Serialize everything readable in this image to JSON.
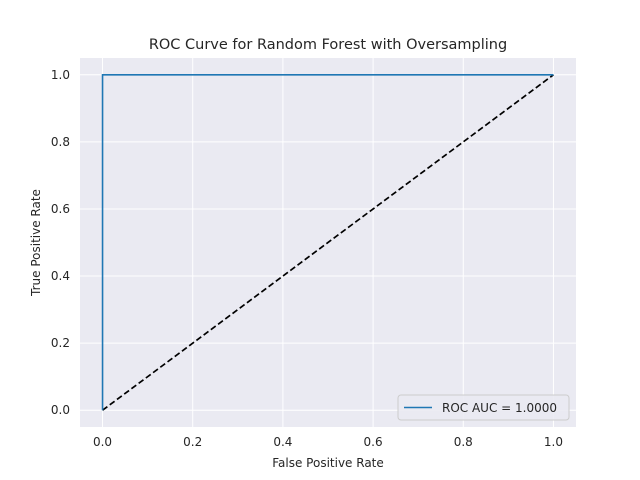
{
  "chart_data": {
    "type": "line",
    "title": "ROC Curve for Random Forest with Oversampling",
    "xlabel": "False Positive Rate",
    "ylabel": "True Positive Rate",
    "xlim": [
      -0.05,
      1.05
    ],
    "ylim": [
      -0.05,
      1.05
    ],
    "x_ticks": [
      0.0,
      0.2,
      0.4,
      0.6,
      0.8,
      1.0
    ],
    "y_ticks": [
      0.0,
      0.2,
      0.4,
      0.6,
      0.8,
      1.0
    ],
    "x_tick_labels": [
      "0.0",
      "0.2",
      "0.4",
      "0.6",
      "0.8",
      "1.0"
    ],
    "y_tick_labels": [
      "0.0",
      "0.2",
      "0.4",
      "0.6",
      "0.8",
      "1.0"
    ],
    "grid": true,
    "legend_position": "lower-right",
    "series": [
      {
        "name": "ROC AUC = 1.0000",
        "style": "solid",
        "color": "#1f77b4",
        "x": [
          0.0,
          0.0,
          1.0
        ],
        "y": [
          0.0,
          1.0,
          1.0
        ]
      },
      {
        "style": "dashed",
        "color": "#000000",
        "x": [
          0.0,
          1.0
        ],
        "y": [
          0.0,
          1.0
        ]
      }
    ],
    "background_color": "#eaeaf2"
  }
}
